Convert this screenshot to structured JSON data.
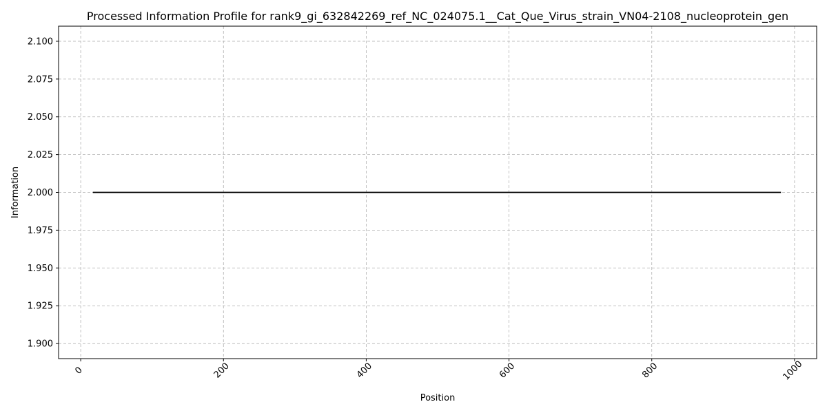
{
  "chart_data": {
    "type": "line",
    "title": "Processed Information Profile for rank9_gi_632842269_ref_NC_024075.1__Cat_Que_Virus_strain_VN04-2108_nucleoprotein_gen",
    "xlabel": "Position",
    "ylabel": "Information",
    "xlim": [
      -31,
      1031
    ],
    "ylim": [
      1.89,
      2.11
    ],
    "x_ticks": [
      0,
      200,
      400,
      600,
      800,
      1000
    ],
    "y_ticks": [
      1.9,
      1.925,
      1.95,
      1.975,
      2.0,
      2.025,
      2.05,
      2.075,
      2.1
    ],
    "x_tick_labels": [
      "0",
      "200",
      "400",
      "600",
      "800",
      "1000"
    ],
    "y_tick_labels": [
      "1.900",
      "1.925",
      "1.950",
      "1.975",
      "2.000",
      "2.025",
      "2.050",
      "2.075",
      "2.100"
    ],
    "grid": true,
    "series": [
      {
        "color": "#000000",
        "x": [
          17,
          981
        ],
        "y": [
          2.0,
          2.0
        ]
      }
    ]
  }
}
